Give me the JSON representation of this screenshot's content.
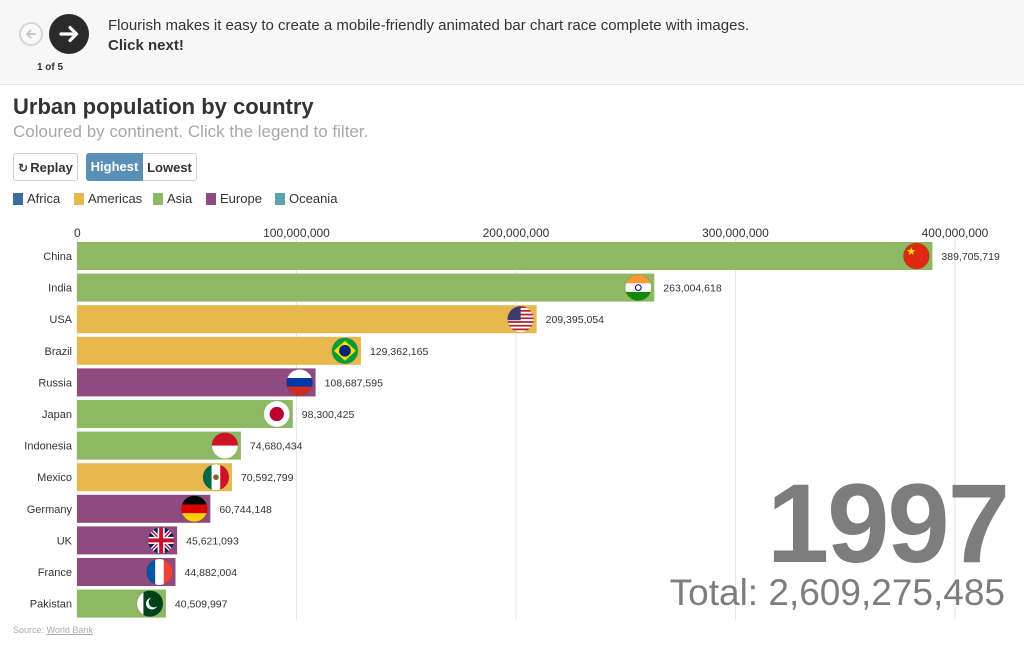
{
  "story": {
    "text": "Flourish makes it easy to create a mobile-friendly animated bar chart race complete with images.",
    "cta": "Click next!",
    "step": "1 of 5"
  },
  "controls": {
    "replay": "Replay",
    "highest": "Highest",
    "lowest": "Lowest"
  },
  "legend": [
    {
      "label": "Africa",
      "color": "#3d6b9c"
    },
    {
      "label": "Americas",
      "color": "#e6b84e"
    },
    {
      "label": "Asia",
      "color": "#8db864"
    },
    {
      "label": "Europe",
      "color": "#8f4a7f"
    },
    {
      "label": "Oceania",
      "color": "#5ea4b0"
    }
  ],
  "counter": {
    "year": "1997",
    "total": "Total: 2,609,275,485"
  },
  "source": {
    "prefix": "Source: ",
    "link": "World Bank"
  },
  "chart_data": {
    "type": "bar",
    "orientation": "horizontal",
    "title": "Urban population by country",
    "subtitle": "Coloured by continent. Click the legend to filter.",
    "xlim": [
      0,
      400000000
    ],
    "ticks": [
      0,
      100000000,
      200000000,
      300000000,
      400000000
    ],
    "tick_labels": [
      "0",
      "100,000,000",
      "200,000,000",
      "300,000,000",
      "400,000,000"
    ],
    "grid": true,
    "categories": [
      "China",
      "India",
      "USA",
      "Brazil",
      "Russia",
      "Japan",
      "Indonesia",
      "Mexico",
      "Germany",
      "UK",
      "France",
      "Pakistan"
    ],
    "values": [
      389705719,
      263004618,
      209395054,
      129362165,
      108687595,
      98300425,
      74680434,
      70592799,
      60744148,
      45621093,
      44882004,
      40509997
    ],
    "value_labels": [
      "389,705,719",
      "263,004,618",
      "209,395,054",
      "129,362,165",
      "108,687,595",
      "98,300,425",
      "74,680,434",
      "70,592,799",
      "60,744,148",
      "45,621,093",
      "44,882,004",
      "40,509,997"
    ],
    "continents": [
      "Asia",
      "Asia",
      "Americas",
      "Americas",
      "Europe",
      "Asia",
      "Asia",
      "Americas",
      "Europe",
      "Europe",
      "Europe",
      "Asia"
    ],
    "flags": [
      "china-flag-icon",
      "india-flag-icon",
      "usa-flag-icon",
      "brazil-flag-icon",
      "russia-flag-icon",
      "japan-flag-icon",
      "indonesia-flag-icon",
      "mexico-flag-icon",
      "germany-flag-icon",
      "uk-flag-icon",
      "france-flag-icon",
      "pakistan-flag-icon"
    ]
  }
}
